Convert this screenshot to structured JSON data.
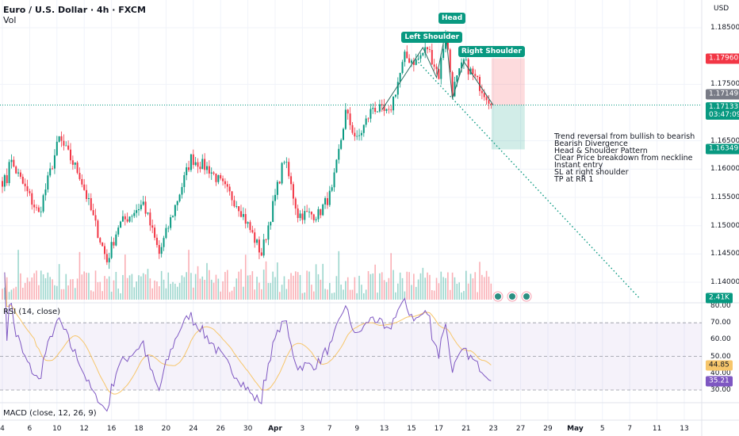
{
  "header": {
    "title": "Euro / U.S. Dollar · 4h · FXCM",
    "volume_label": "Vol",
    "currency": "USD"
  },
  "price_axis": {
    "ticks": [
      "1.18500",
      "1.17500",
      "1.16500",
      "1.16000",
      "1.15500",
      "1.15000",
      "1.14500",
      "1.14000"
    ],
    "tick_values": [
      1.185,
      1.175,
      1.165,
      1.16,
      1.155,
      1.15,
      1.145,
      1.14
    ]
  },
  "badges": {
    "stop_loss": {
      "text": "1.17960",
      "value": 1.1796,
      "color": "#f23645"
    },
    "prev_close": {
      "text": "1.17149",
      "value": 1.17149,
      "color": "#787b86"
    },
    "last": {
      "text": "1.17133",
      "value": 1.17133,
      "countdown": "03:47:09",
      "color": "#089981"
    },
    "take_profit": {
      "text": "1.16349",
      "value": 1.16349,
      "color": "#089981"
    },
    "volume": {
      "text": "2.41K",
      "color": "#089981"
    }
  },
  "rsi": {
    "label": "RSI (14, close)",
    "ticks": [
      "80.00",
      "70.00",
      "60.00",
      "50.00",
      "40.00",
      "30.00"
    ],
    "tick_values": [
      80,
      70,
      60,
      50,
      40,
      30
    ],
    "rsi_value": "35.21",
    "ma_value": "44.85",
    "rsi_color": "#7e57c2",
    "ma_color": "#f7c66b",
    "upper": 70,
    "middle": 50,
    "lower": 30
  },
  "macd": {
    "label": "MACD (close, 12, 26, 9)"
  },
  "time_axis": {
    "ticks": [
      {
        "label": "4",
        "date": "Mar 4"
      },
      {
        "label": "6",
        "date": "Mar 6"
      },
      {
        "label": "10",
        "date": "Mar 10"
      },
      {
        "label": "12",
        "date": "Mar 12"
      },
      {
        "label": "16",
        "date": "Mar 16"
      },
      {
        "label": "18",
        "date": "Mar 18"
      },
      {
        "label": "20",
        "date": "Mar 20"
      },
      {
        "label": "24",
        "date": "Mar 24"
      },
      {
        "label": "26",
        "date": "Mar 26"
      },
      {
        "label": "30",
        "date": "Mar 30"
      },
      {
        "label": "Apr",
        "date": "Apr 1",
        "bold": true
      },
      {
        "label": "3",
        "date": "Apr 3"
      },
      {
        "label": "7",
        "date": "Apr 7"
      },
      {
        "label": "9",
        "date": "Apr 9"
      },
      {
        "label": "13",
        "date": "Apr 13"
      },
      {
        "label": "15",
        "date": "Apr 15"
      },
      {
        "label": "17",
        "date": "Apr 17"
      },
      {
        "label": "21",
        "date": "Apr 21"
      },
      {
        "label": "23",
        "date": "Apr 23"
      },
      {
        "label": "27",
        "date": "Apr 27"
      },
      {
        "label": "29",
        "date": "Apr 29"
      },
      {
        "label": "May",
        "date": "May 1",
        "bold": true
      },
      {
        "label": "5",
        "date": "May 5"
      },
      {
        "label": "7",
        "date": "May 7"
      },
      {
        "label": "11",
        "date": "May 11"
      },
      {
        "label": "13",
        "date": "May 13"
      }
    ]
  },
  "chart_data": {
    "type": "candlestick",
    "symbol": "EURUSD",
    "timeframe": "4h",
    "up_color": "#089981",
    "down_color": "#f23645",
    "ylim": [
      1.1365,
      1.1895
    ],
    "approx_close_path": [
      [
        "Mar 3 12:00",
        1.158
      ],
      [
        "Mar 4 12:00",
        1.1619
      ],
      [
        "Mar 6 16:00",
        1.152
      ],
      [
        "Mar 10 04:00",
        1.1654
      ],
      [
        "Mar 11 16:00",
        1.159
      ],
      [
        "Mar 13 16:00",
        1.1437
      ],
      [
        "Mar 14 12:00",
        1.15
      ],
      [
        "Mar 18 08:00",
        1.154
      ],
      [
        "Mar 19 12:00",
        1.145
      ],
      [
        "Mar 21 20:00",
        1.1619
      ],
      [
        "Mar 25 04:00",
        1.16
      ],
      [
        "Mar 27 08:00",
        1.1535
      ],
      [
        "Mar 31 00:00",
        1.145
      ],
      [
        "Apr 1 16:00",
        1.1619
      ],
      [
        "Apr 2 16:00",
        1.152
      ],
      [
        "Apr 4 04:00",
        1.152
      ],
      [
        "Apr 7 04:00",
        1.156
      ],
      [
        "Apr 8 04:00",
        1.17
      ],
      [
        "Apr 9 00:00",
        1.165
      ],
      [
        "Apr 10 04:00",
        1.171
      ],
      [
        "Apr 11 08:00",
        1.1696
      ],
      [
        "Apr 14 12:00",
        1.1798
      ],
      [
        "Apr 15 08:00",
        1.179
      ],
      [
        "Apr 16 04:00",
        1.1815
      ],
      [
        "Apr 17 00:00",
        1.1766
      ],
      [
        "Apr 17 12:00",
        1.1843
      ],
      [
        "Apr 18 00:00",
        1.1738
      ],
      [
        "Apr 18 20:00",
        1.179
      ],
      [
        "Apr 21 12:00",
        1.1766
      ],
      [
        "Apr 23 00:00",
        1.1713
      ]
    ],
    "pattern": {
      "labels": [
        {
          "text": "Left Shoulder",
          "date": "Apr 15 20:00",
          "price": 1.1815
        },
        {
          "text": "Head",
          "date": "Apr 17 12:00",
          "price": 1.1843
        },
        {
          "text": "Right Shoulder",
          "date": "Apr 18 20:00",
          "price": 1.179
        }
      ],
      "path": [
        [
          "Apr 10 20:00",
          1.1705
        ],
        [
          "Apr 15 20:00",
          1.1815
        ],
        [
          "Apr 16 20:00",
          1.1762
        ],
        [
          "Apr 17 12:00",
          1.1843
        ],
        [
          "Apr 18 00:00",
          1.1725
        ],
        [
          "Apr 18 20:00",
          1.179
        ],
        [
          "Apr 23 00:00",
          1.1713
        ]
      ],
      "neckline": [
        [
          "Apr 15 12:00",
          1.1789
        ],
        [
          "May 7 16:00",
          1.1373
        ]
      ],
      "neckline_color": "#089981"
    },
    "position": {
      "type": "short",
      "entry": 1.17133,
      "stop": 1.1796,
      "target": 1.16349,
      "from": "Apr 23 08:00",
      "to": "Apr 27 08:00"
    },
    "events": [
      {
        "date": "Apr 23 08:00"
      },
      {
        "date": "Apr 24 08:00"
      },
      {
        "date": "Apr 25 08:00"
      }
    ]
  },
  "annotation": {
    "lines": [
      "Trend reversal from bullish to bearish",
      "Bearish Divergence",
      "Head & Shoulder Pattern",
      "Clear Price breakdown from neckline",
      "Instant entry",
      "SL at right shoulder",
      "TP at RR 1"
    ]
  }
}
